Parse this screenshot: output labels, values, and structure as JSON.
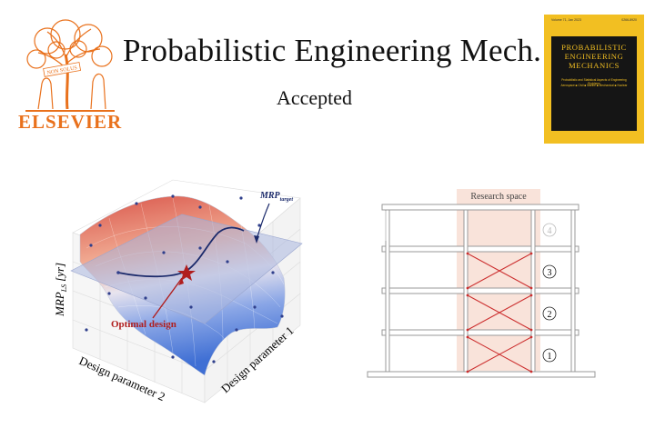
{
  "header": {
    "journal_title": "Probabilistic Engineering Mech.",
    "status": "Accepted",
    "publisher": "ELSEVIER",
    "logo_motto": "NON SOLUS"
  },
  "cover": {
    "title_lines": [
      "PROBABILISTIC",
      "ENGINEERING",
      "MECHANICS"
    ],
    "subtitle": "Probabilistic and Statistical Aspects of Engineering Problems",
    "topics": "Aerospace ■ Civil ■ Marine ■ Mechanical ■ Nuclear",
    "volume": "Volume 71, Jan 2023",
    "issn": "0266-8920"
  },
  "figure_left": {
    "z_label": "MRP",
    "z_label_sub": "LS",
    "z_label_unit": "[yr]",
    "x_label": "Design parameter 2",
    "y_label": "Design parameter 1",
    "plane_label": "MRP",
    "plane_label_sub": "target",
    "annotation": "Optimal design"
  },
  "figure_right": {
    "research_label": "Research space",
    "stories": [
      "1",
      "2",
      "3",
      "4"
    ]
  },
  "colors": {
    "elsevier_orange": "#e9711c",
    "cover_yellow": "#f2bf22",
    "surface_red": "#d9554a",
    "surface_blue": "#4a78d6",
    "plane": "#aab6de",
    "annotation_red": "#b01e1e",
    "curve_navy": "#1b2a6b",
    "research_fill": "#f9e3da"
  }
}
